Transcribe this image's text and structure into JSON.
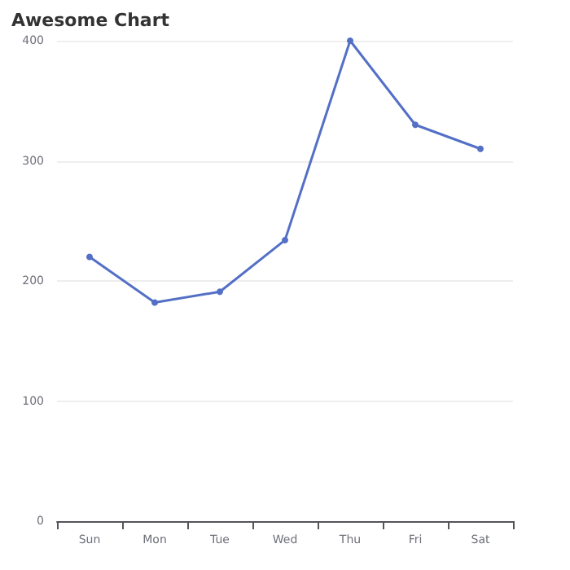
{
  "chart_data": {
    "type": "line",
    "title": "Awesome Chart",
    "categories": [
      "Sun",
      "Mon",
      "Tue",
      "Wed",
      "Thu",
      "Fri",
      "Sat"
    ],
    "series": [
      {
        "color": "#5470c6",
        "values": [
          220,
          182,
          191,
          234,
          400,
          330,
          310
        ]
      }
    ],
    "ylim": [
      0,
      400
    ],
    "yticks": [
      0,
      100,
      200,
      300,
      400
    ],
    "grid": "y",
    "marker": "circle",
    "line_style": "solid"
  }
}
